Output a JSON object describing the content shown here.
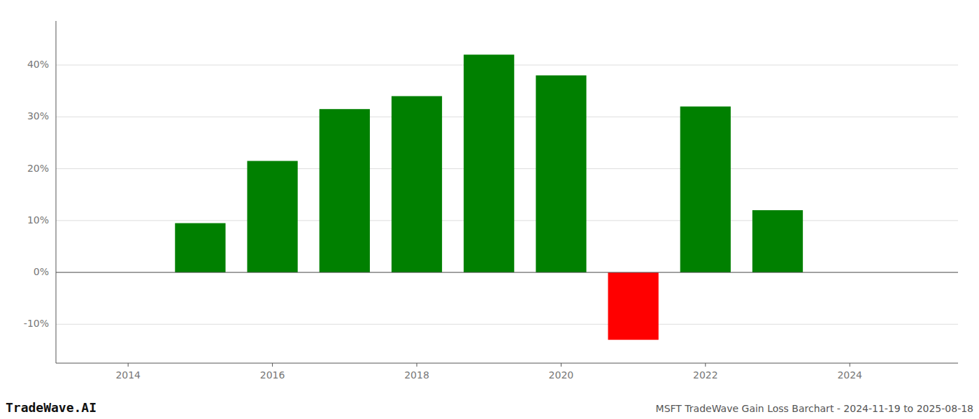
{
  "chart_data": {
    "type": "bar",
    "title": "MSFT TradeWave Gain Loss Barchart - 2024-11-19 to 2025-08-18",
    "annotations": [
      "TradeWave.AI"
    ],
    "x": [
      2015,
      2016,
      2017,
      2018,
      2019,
      2020,
      2021,
      2022,
      2023
    ],
    "values": [
      0.095,
      0.215,
      0.315,
      0.34,
      0.42,
      0.38,
      -0.13,
      0.32,
      0.12
    ],
    "colors": [
      "#008000",
      "#008000",
      "#008000",
      "#008000",
      "#008000",
      "#008000",
      "#ff0000",
      "#008000",
      "#008000"
    ],
    "xlim": [
      2013.0,
      2025.5
    ],
    "xticks": [
      2014,
      2016,
      2018,
      2020,
      2022,
      2024
    ],
    "ylim": [
      -0.175,
      0.485
    ],
    "yticks": [
      {
        "value": -0.1,
        "label": "-10%"
      },
      {
        "value": 0.0,
        "label": "0%"
      },
      {
        "value": 0.1,
        "label": "10%"
      },
      {
        "value": 0.2,
        "label": "20%"
      },
      {
        "value": 0.3,
        "label": "30%"
      },
      {
        "value": 0.4,
        "label": "40%"
      }
    ],
    "grid": true
  }
}
